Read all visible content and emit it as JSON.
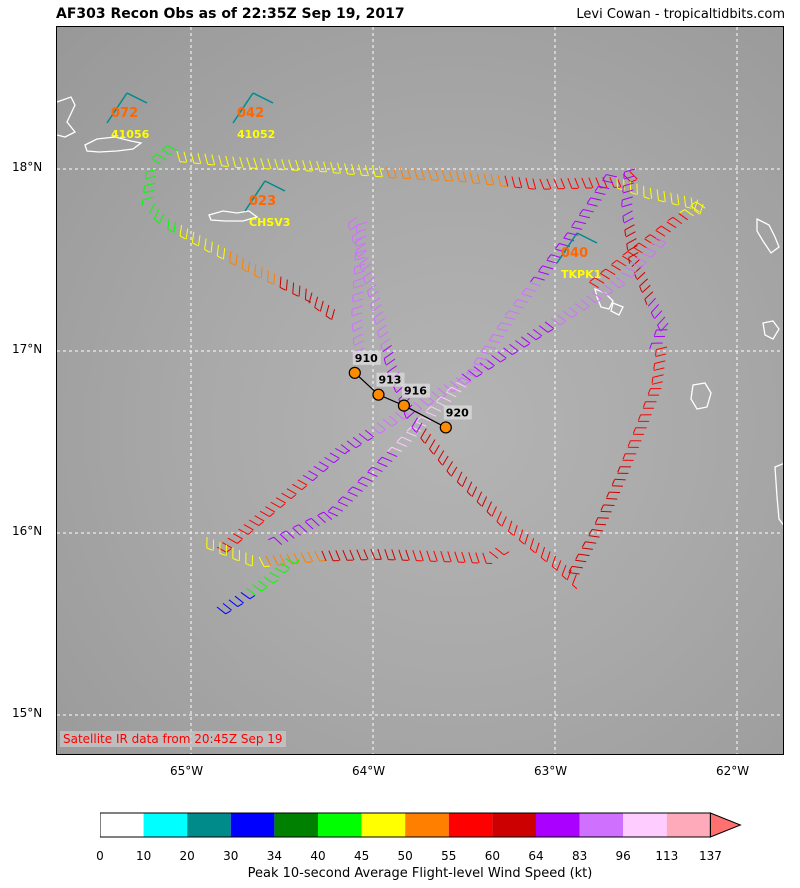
{
  "header": {
    "title": "AF303 Recon Obs as of 22:35Z Sep 19, 2017",
    "credit": "Levi Cowan - tropicaltidbits.com"
  },
  "map": {
    "satellite_label": "Satellite IR data from 20:45Z Sep 19",
    "lat_labels": [
      "18°N",
      "17°N",
      "16°N",
      "15°N"
    ],
    "lon_labels": [
      "65°W",
      "64°W",
      "63°W",
      "62°W"
    ],
    "stations": [
      {
        "value": "072",
        "id": "41056"
      },
      {
        "value": "042",
        "id": "41052"
      },
      {
        "value": "023",
        "id": "CHSV3"
      },
      {
        "value": "040",
        "id": "TKPK1"
      }
    ],
    "center_fixes": [
      {
        "label": "910",
        "lon": -64.1,
        "lat": 16.88
      },
      {
        "label": "913",
        "lon": -63.97,
        "lat": 16.76
      },
      {
        "label": "916",
        "lon": -63.83,
        "lat": 16.7
      },
      {
        "label": "920",
        "lon": -63.6,
        "lat": 16.58
      }
    ],
    "colors": {
      "station_value": "#ff6600",
      "station_id": "#ffff00",
      "center_fill": "#ff8c00",
      "track_line": "#000000"
    }
  },
  "colorbar": {
    "title": "Peak 10-second Average Flight-level Wind Speed (kt)",
    "ticks": [
      "0",
      "10",
      "20",
      "30",
      "34",
      "40",
      "45",
      "50",
      "55",
      "60",
      "64",
      "83",
      "96",
      "113",
      "137"
    ],
    "colors": [
      "#ffffff",
      "#00ffff",
      "#008b8b",
      "#0000ff",
      "#008000",
      "#00ff00",
      "#ffff00",
      "#ff8000",
      "#ff0000",
      "#cc0000",
      "#aa00ff",
      "#d070ff",
      "#ffccff",
      "#ffaabb",
      "#ff7070"
    ]
  }
}
